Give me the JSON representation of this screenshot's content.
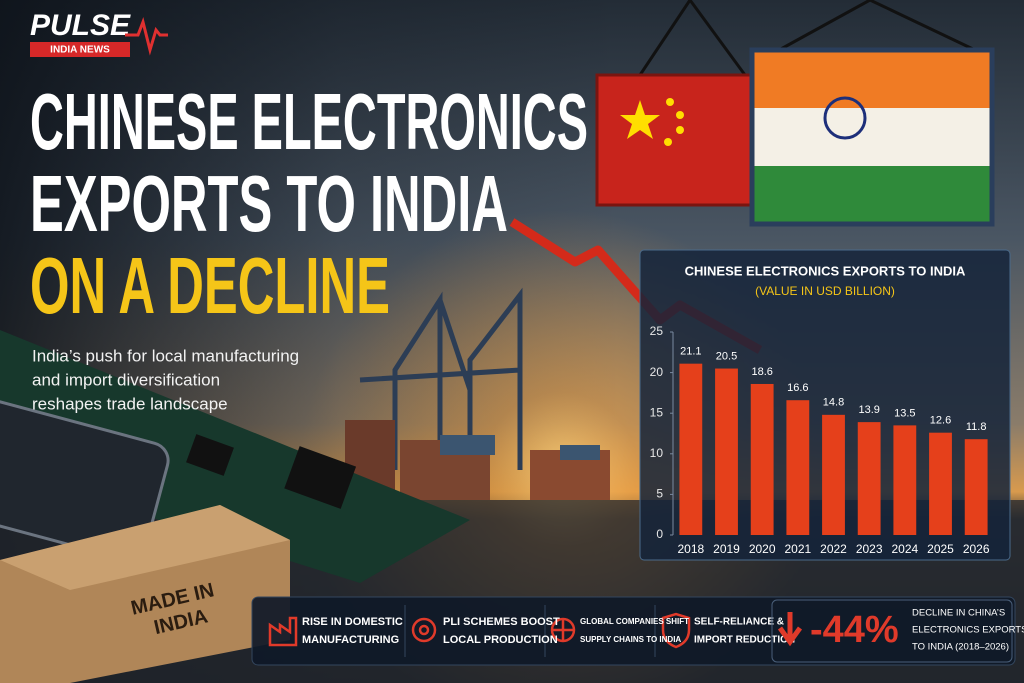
{
  "brand": {
    "name": "PULSE",
    "tagline": "INDIA NEWS"
  },
  "headline": {
    "lines": [
      "CHINESE ELECTRONICS",
      "EXPORTS TO INDIA",
      "ON A DECLINE"
    ],
    "subtitle": [
      "India’s push for local manufacturing",
      "and import diversification",
      "reshapes trade landscape"
    ]
  },
  "box_label": [
    "MADE IN",
    "INDIA"
  ],
  "chart_data": {
    "type": "bar",
    "title": "CHINESE ELECTRONICS EXPORTS TO INDIA",
    "subtitle": "(VALUE IN USD BILLION)",
    "categories": [
      "2018",
      "2019",
      "2020",
      "2021",
      "2022",
      "2023",
      "2024",
      "2025",
      "2026"
    ],
    "values": [
      21.1,
      20.5,
      18.6,
      16.6,
      14.8,
      13.9,
      13.5,
      12.6,
      11.8
    ],
    "color": "#e5401b",
    "ylim": [
      0,
      25
    ],
    "yticks": [
      0,
      5,
      10,
      15,
      20,
      25
    ]
  },
  "factors": [
    [
      "RISE IN DOMESTIC",
      "MANUFACTURING"
    ],
    [
      "PLI SCHEMES BOOST",
      "LOCAL PRODUCTION"
    ],
    [
      "GLOBAL COMPANIES SHIFT",
      "SUPPLY CHAINS TO INDIA"
    ],
    [
      "SELF-RELIANCE &",
      "IMPORT REDUCTION"
    ]
  ],
  "stat": {
    "value": "-44%",
    "label": [
      "DECLINE IN CHINA’S",
      "ELECTRONICS EXPORTS",
      "TO INDIA (2018–2026)"
    ]
  }
}
